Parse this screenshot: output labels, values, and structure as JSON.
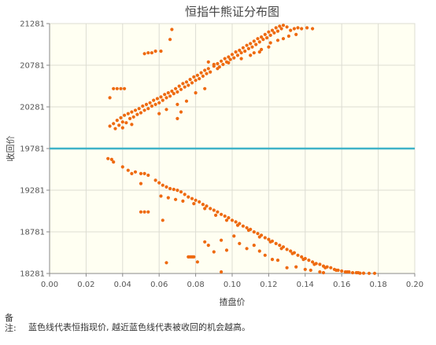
{
  "chart_data": {
    "type": "scatter",
    "title": "恒指牛熊证分布图",
    "xlabel": "揸盘价",
    "ylabel": "收回价",
    "xlim": [
      0,
      0.2
    ],
    "ylim": [
      18281,
      21281
    ],
    "x_ticks": [
      "0.00",
      "0.02",
      "0.04",
      "0.06",
      "0.08",
      "0.10",
      "0.12",
      "0.14",
      "0.16",
      "0.18",
      "0.20"
    ],
    "y_ticks": [
      "18281",
      "18781",
      "19281",
      "19781",
      "20281",
      "20781",
      "21281"
    ],
    "reference_line": {
      "y": 19781,
      "color": "#3fb3c8"
    },
    "grid": true,
    "point_color": "#ee6a10",
    "series": [
      {
        "name": "",
        "points": [
          [
            0.033,
            20050
          ],
          [
            0.035,
            20080
          ],
          [
            0.036,
            20020
          ],
          [
            0.037,
            20120
          ],
          [
            0.038,
            20060
          ],
          [
            0.039,
            20150
          ],
          [
            0.04,
            20100
          ],
          [
            0.04,
            20030
          ],
          [
            0.041,
            20180
          ],
          [
            0.042,
            20090
          ],
          [
            0.043,
            20200
          ],
          [
            0.044,
            20140
          ],
          [
            0.045,
            20220
          ],
          [
            0.045,
            20070
          ],
          [
            0.046,
            20160
          ],
          [
            0.047,
            20240
          ],
          [
            0.048,
            20190
          ],
          [
            0.049,
            20260
          ],
          [
            0.05,
            20210
          ],
          [
            0.051,
            20290
          ],
          [
            0.052,
            20240
          ],
          [
            0.053,
            20310
          ],
          [
            0.054,
            20260
          ],
          [
            0.055,
            20330
          ],
          [
            0.056,
            20290
          ],
          [
            0.057,
            20360
          ],
          [
            0.058,
            20310
          ],
          [
            0.059,
            20380
          ],
          [
            0.06,
            20330
          ],
          [
            0.061,
            20400
          ],
          [
            0.062,
            20360
          ],
          [
            0.063,
            20430
          ],
          [
            0.064,
            20390
          ],
          [
            0.065,
            20450
          ],
          [
            0.066,
            20410
          ],
          [
            0.067,
            20470
          ],
          [
            0.068,
            20440
          ],
          [
            0.069,
            20500
          ],
          [
            0.07,
            20460
          ],
          [
            0.071,
            20530
          ],
          [
            0.072,
            20490
          ],
          [
            0.073,
            20560
          ],
          [
            0.074,
            20520
          ],
          [
            0.075,
            20580
          ],
          [
            0.076,
            20540
          ],
          [
            0.077,
            20610
          ],
          [
            0.078,
            20570
          ],
          [
            0.079,
            20640
          ],
          [
            0.08,
            20600
          ],
          [
            0.081,
            20660
          ],
          [
            0.082,
            20620
          ],
          [
            0.083,
            20690
          ],
          [
            0.084,
            20650
          ],
          [
            0.085,
            20720
          ],
          [
            0.086,
            20680
          ],
          [
            0.087,
            20740
          ],
          [
            0.088,
            20700
          ],
          [
            0.09,
            20770
          ],
          [
            0.092,
            20800
          ],
          [
            0.093,
            20760
          ],
          [
            0.094,
            20830
          ],
          [
            0.095,
            20790
          ],
          [
            0.096,
            20860
          ],
          [
            0.097,
            20820
          ],
          [
            0.098,
            20880
          ],
          [
            0.099,
            20850
          ],
          [
            0.1,
            20910
          ],
          [
            0.101,
            20870
          ],
          [
            0.102,
            20940
          ],
          [
            0.103,
            20900
          ],
          [
            0.104,
            20960
          ],
          [
            0.105,
            20930
          ],
          [
            0.106,
            20990
          ],
          [
            0.107,
            20950
          ],
          [
            0.108,
            21020
          ],
          [
            0.109,
            20980
          ],
          [
            0.11,
            21040
          ],
          [
            0.111,
            21000
          ],
          [
            0.112,
            21070
          ],
          [
            0.113,
            21030
          ],
          [
            0.114,
            21100
          ],
          [
            0.115,
            21060
          ],
          [
            0.116,
            21120
          ],
          [
            0.117,
            21090
          ],
          [
            0.118,
            21150
          ],
          [
            0.119,
            21110
          ],
          [
            0.12,
            21180
          ],
          [
            0.121,
            21140
          ],
          [
            0.122,
            21200
          ],
          [
            0.123,
            21170
          ],
          [
            0.124,
            21230
          ],
          [
            0.125,
            21190
          ],
          [
            0.126,
            21250
          ],
          [
            0.127,
            21220
          ],
          [
            0.128,
            21260
          ],
          [
            0.13,
            21240
          ],
          [
            0.132,
            21200
          ],
          [
            0.134,
            21220
          ],
          [
            0.136,
            21230
          ],
          [
            0.138,
            21220
          ],
          [
            0.141,
            21230
          ],
          [
            0.144,
            21220
          ],
          [
            0.033,
            20390
          ],
          [
            0.035,
            20500
          ],
          [
            0.037,
            20500
          ],
          [
            0.039,
            20500
          ],
          [
            0.041,
            20500
          ],
          [
            0.052,
            20920
          ],
          [
            0.054,
            20930
          ],
          [
            0.056,
            20930
          ],
          [
            0.058,
            20950
          ],
          [
            0.061,
            20950
          ],
          [
            0.066,
            21090
          ],
          [
            0.067,
            21210
          ],
          [
            0.087,
            20820
          ],
          [
            0.09,
            20790
          ],
          [
            0.092,
            20740
          ],
          [
            0.098,
            20810
          ],
          [
            0.105,
            20860
          ],
          [
            0.11,
            20900
          ],
          [
            0.115,
            20940
          ],
          [
            0.12,
            21000
          ],
          [
            0.112,
            20930
          ],
          [
            0.116,
            20970
          ],
          [
            0.121,
            21050
          ],
          [
            0.125,
            21080
          ],
          [
            0.128,
            21100
          ],
          [
            0.131,
            21130
          ],
          [
            0.135,
            21150
          ],
          [
            0.06,
            20200
          ],
          [
            0.064,
            20250
          ],
          [
            0.07,
            20310
          ],
          [
            0.075,
            20350
          ],
          [
            0.08,
            20450
          ],
          [
            0.085,
            20500
          ],
          [
            0.07,
            20140
          ],
          [
            0.072,
            20220
          ],
          [
            0.032,
            19660
          ],
          [
            0.034,
            19650
          ],
          [
            0.035,
            19620
          ],
          [
            0.04,
            19560
          ],
          [
            0.043,
            19520
          ],
          [
            0.045,
            19480
          ],
          [
            0.047,
            19500
          ],
          [
            0.05,
            19480
          ],
          [
            0.052,
            19480
          ],
          [
            0.054,
            19460
          ],
          [
            0.05,
            19360
          ],
          [
            0.058,
            19400
          ],
          [
            0.06,
            19370
          ],
          [
            0.062,
            19340
          ],
          [
            0.064,
            19320
          ],
          [
            0.066,
            19300
          ],
          [
            0.068,
            19290
          ],
          [
            0.07,
            19280
          ],
          [
            0.072,
            19260
          ],
          [
            0.074,
            19230
          ],
          [
            0.076,
            19200
          ],
          [
            0.078,
            19180
          ],
          [
            0.08,
            19160
          ],
          [
            0.082,
            19140
          ],
          [
            0.084,
            19110
          ],
          [
            0.086,
            19090
          ],
          [
            0.088,
            19060
          ],
          [
            0.09,
            19040
          ],
          [
            0.092,
            19020
          ],
          [
            0.094,
            18990
          ],
          [
            0.096,
            18970
          ],
          [
            0.098,
            18950
          ],
          [
            0.1,
            18920
          ],
          [
            0.102,
            18900
          ],
          [
            0.104,
            18880
          ],
          [
            0.106,
            18850
          ],
          [
            0.108,
            18830
          ],
          [
            0.11,
            18810
          ],
          [
            0.112,
            18780
          ],
          [
            0.114,
            18760
          ],
          [
            0.116,
            18740
          ],
          [
            0.118,
            18710
          ],
          [
            0.12,
            18690
          ],
          [
            0.122,
            18670
          ],
          [
            0.124,
            18640
          ],
          [
            0.126,
            18620
          ],
          [
            0.128,
            18600
          ],
          [
            0.13,
            18570
          ],
          [
            0.132,
            18550
          ],
          [
            0.134,
            18530
          ],
          [
            0.136,
            18500
          ],
          [
            0.138,
            18480
          ],
          [
            0.14,
            18460
          ],
          [
            0.142,
            18440
          ],
          [
            0.144,
            18420
          ],
          [
            0.146,
            18400
          ],
          [
            0.148,
            18390
          ],
          [
            0.15,
            18370
          ],
          [
            0.152,
            18360
          ],
          [
            0.154,
            18350
          ],
          [
            0.156,
            18330
          ],
          [
            0.158,
            18320
          ],
          [
            0.16,
            18310
          ],
          [
            0.162,
            18300
          ],
          [
            0.164,
            18300
          ],
          [
            0.166,
            18290
          ],
          [
            0.168,
            18290
          ],
          [
            0.17,
            18285
          ],
          [
            0.172,
            18285
          ],
          [
            0.175,
            18283
          ],
          [
            0.178,
            18283
          ],
          [
            0.061,
            19210
          ],
          [
            0.065,
            19190
          ],
          [
            0.069,
            19170
          ],
          [
            0.073,
            19150
          ],
          [
            0.079,
            19120
          ],
          [
            0.085,
            19060
          ],
          [
            0.091,
            18980
          ],
          [
            0.097,
            18920
          ],
          [
            0.103,
            18860
          ],
          [
            0.109,
            18800
          ],
          [
            0.115,
            18720
          ],
          [
            0.121,
            18660
          ],
          [
            0.127,
            18580
          ],
          [
            0.133,
            18520
          ],
          [
            0.139,
            18450
          ],
          [
            0.145,
            18390
          ],
          [
            0.151,
            18350
          ],
          [
            0.157,
            18320
          ],
          [
            0.163,
            18300
          ],
          [
            0.169,
            18290
          ],
          [
            0.05,
            19020
          ],
          [
            0.052,
            19020
          ],
          [
            0.054,
            19020
          ],
          [
            0.062,
            18920
          ],
          [
            0.076,
            18480
          ],
          [
            0.077,
            18480
          ],
          [
            0.078,
            18480
          ],
          [
            0.079,
            18480
          ],
          [
            0.081,
            18420
          ],
          [
            0.085,
            18660
          ],
          [
            0.087,
            18620
          ],
          [
            0.09,
            18540
          ],
          [
            0.094,
            18680
          ],
          [
            0.097,
            18560
          ],
          [
            0.101,
            18730
          ],
          [
            0.104,
            18640
          ],
          [
            0.108,
            18580
          ],
          [
            0.112,
            18620
          ],
          [
            0.115,
            18550
          ],
          [
            0.118,
            18500
          ],
          [
            0.122,
            18450
          ],
          [
            0.125,
            18440
          ],
          [
            0.13,
            18350
          ],
          [
            0.135,
            18360
          ],
          [
            0.14,
            18330
          ],
          [
            0.143,
            18320
          ],
          [
            0.148,
            18300
          ],
          [
            0.064,
            18410
          ],
          [
            0.094,
            18300
          ],
          [
            0.15,
            18290
          ]
        ]
      }
    ]
  },
  "note": {
    "label": "备注:",
    "text": "蓝色线代表恒指现价, 越近蓝色线代表被收回的机会越高。"
  }
}
